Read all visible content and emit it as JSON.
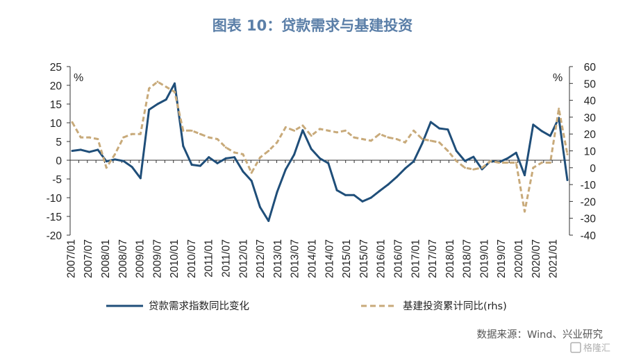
{
  "chart_data": {
    "type": "line",
    "title": "图表 10：贷款需求与基建投资",
    "x": [
      "2007/01",
      "2007/04",
      "2007/07",
      "2007/10",
      "2008/01",
      "2008/04",
      "2008/07",
      "2008/10",
      "2009/01",
      "2009/04",
      "2009/07",
      "2009/10",
      "2010/01",
      "2010/04",
      "2010/07",
      "2010/10",
      "2011/01",
      "2011/04",
      "2011/07",
      "2011/10",
      "2012/01",
      "2012/04",
      "2012/07",
      "2012/10",
      "2013/01",
      "2013/04",
      "2013/07",
      "2013/10",
      "2014/01",
      "2014/04",
      "2014/07",
      "2014/10",
      "2015/01",
      "2015/04",
      "2015/07",
      "2015/10",
      "2016/01",
      "2016/04",
      "2016/07",
      "2016/10",
      "2017/01",
      "2017/04",
      "2017/07",
      "2017/10",
      "2018/01",
      "2018/04",
      "2018/07",
      "2018/10",
      "2019/01",
      "2019/04",
      "2019/07",
      "2019/10",
      "2020/01",
      "2020/04",
      "2020/07",
      "2020/10",
      "2021/01",
      "2021/04",
      "2021/07"
    ],
    "x_tick_labels": [
      "2007/01",
      "2007/07",
      "2008/01",
      "2008/07",
      "2009/01",
      "2009/07",
      "2010/01",
      "2010/07",
      "2011/01",
      "2011/07",
      "2012/01",
      "2012/07",
      "2013/01",
      "2013/07",
      "2014/01",
      "2014/07",
      "2015/01",
      "2015/07",
      "2016/01",
      "2016/07",
      "2017/01",
      "2017/07",
      "2018/01",
      "2018/07",
      "2019/01",
      "2019/07",
      "2020/01",
      "2020/07",
      "2021/01"
    ],
    "series": [
      {
        "name": "贷款需求指数同比变化",
        "axis": "left",
        "color": "#1f4e79",
        "style": "solid",
        "values": [
          2.5,
          2.8,
          2.2,
          2.8,
          -0.3,
          0.2,
          -0.2,
          -1.8,
          -4.8,
          13.5,
          15,
          16.2,
          20.5,
          3.8,
          -1.2,
          -1.5,
          0.8,
          -0.8,
          0.5,
          0.8,
          -3,
          -5.5,
          -12.5,
          -16.2,
          -8.5,
          -2.5,
          1.5,
          8,
          3,
          0.5,
          -0.8,
          -8,
          -9.3,
          -9.3,
          -11,
          -10,
          -8.2,
          -6.5,
          -4.5,
          -2.2,
          -0.3,
          4.5,
          10.2,
          8.5,
          8.2,
          2.5,
          -0.2,
          0.9,
          -2.4,
          -0.2,
          -0.5,
          0.5,
          2,
          -4,
          9.5,
          7.8,
          6.5,
          11.3,
          -5.3
        ]
      },
      {
        "name": "基建投资累计同比(rhs)",
        "axis": "right",
        "color": "#c8aa7a",
        "style": "dashed",
        "values": [
          27,
          18,
          18,
          17,
          0,
          8,
          18,
          20,
          20,
          47,
          51,
          48,
          45,
          22,
          22,
          20,
          18,
          17,
          12,
          9,
          8,
          -3,
          6,
          10,
          15,
          24,
          22,
          25,
          19,
          23,
          22,
          21,
          22,
          18,
          17,
          16,
          20,
          18,
          17,
          15,
          22,
          17,
          16,
          15,
          10,
          4,
          0,
          -1,
          0,
          4,
          3,
          3,
          3,
          -26,
          0,
          3,
          3,
          35,
          8
        ]
      }
    ],
    "ylim": [
      -20,
      25
    ],
    "yticks": [
      -20,
      -15,
      -10,
      -5,
      0,
      5,
      10,
      15,
      20,
      25
    ],
    "ylim_right": [
      -40,
      60
    ],
    "yticks_right": [
      -40,
      -30,
      -20,
      -10,
      0,
      10,
      20,
      30,
      40,
      50,
      60
    ],
    "ylabel": "%",
    "ylabel_right": "%",
    "legend": [
      "贷款需求指数同比变化",
      "基建投资累计同比(rhs)"
    ],
    "legend_position": "bottom",
    "source": "数据来源：Wind、兴业研究",
    "watermark": "格隆汇"
  },
  "colors": {
    "title": "#5b7fa8",
    "axis": "#333333",
    "source": "#555555",
    "watermark": "#b0b0b0"
  }
}
